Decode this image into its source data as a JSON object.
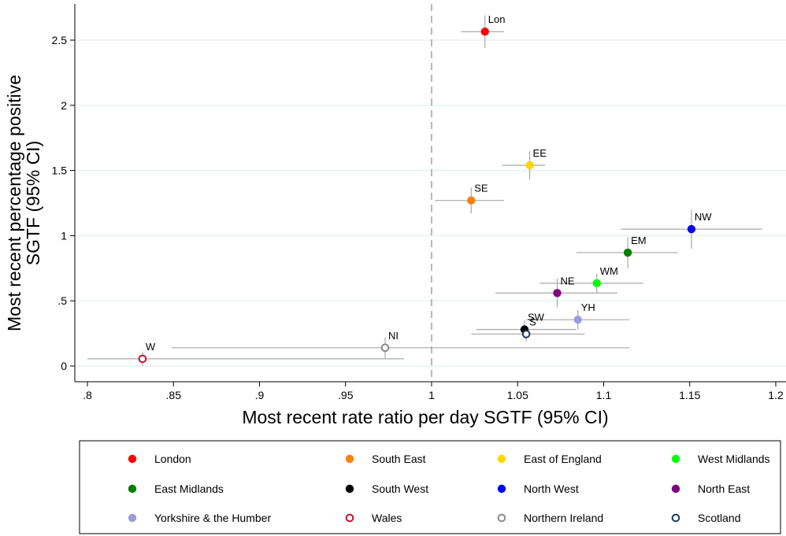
{
  "chart_data": {
    "type": "scatter",
    "xlabel": "Most recent rate ratio per day SGTF (95% CI)",
    "ylabel": "Most recent percentage positive SGTF (95% CI)",
    "xlim": [
      0.8,
      1.2
    ],
    "ylim": [
      0,
      2.5
    ],
    "x_ticks": [
      ".8",
      ".85",
      ".9",
      ".95",
      "1",
      "1.05",
      "1.1",
      "1.15",
      "1.2"
    ],
    "y_ticks": [
      "0",
      ".5",
      "1",
      "1.5",
      "2",
      "2.5"
    ],
    "reference_line_x": 1,
    "grid": "horizontal",
    "legend_position": "bottom",
    "series": [
      {
        "name": "London",
        "label": "Lon",
        "color": "#ff0000",
        "hollow": false,
        "x": 1.031,
        "y": 2.565,
        "x_ci": [
          1.017,
          1.042
        ],
        "y_ci": [
          2.44,
          2.69
        ]
      },
      {
        "name": "South East",
        "label": "SE",
        "color": "#ff7f0e",
        "hollow": false,
        "x": 1.023,
        "y": 1.27,
        "x_ci": [
          1.002,
          1.042
        ],
        "y_ci": [
          1.17,
          1.37
        ]
      },
      {
        "name": "East of England",
        "label": "EE",
        "color": "#ffd700",
        "hollow": false,
        "x": 1.057,
        "y": 1.54,
        "x_ci": [
          1.041,
          1.066
        ],
        "y_ci": [
          1.43,
          1.65
        ]
      },
      {
        "name": "West Midlands",
        "label": "WM",
        "color": "#00ff00",
        "hollow": false,
        "x": 1.096,
        "y": 0.635,
        "x_ci": [
          1.063,
          1.123
        ],
        "y_ci": [
          0.56,
          0.71
        ]
      },
      {
        "name": "East Midlands",
        "label": "EM",
        "color": "#007f00",
        "hollow": false,
        "x": 1.114,
        "y": 0.87,
        "x_ci": [
          1.084,
          1.143
        ],
        "y_ci": [
          0.75,
          0.99
        ]
      },
      {
        "name": "South West",
        "label": "SW",
        "color": "#000000",
        "hollow": false,
        "x": 1.054,
        "y": 0.28,
        "x_ci": [
          1.026,
          1.084
        ],
        "y_ci": [
          0.21,
          0.35
        ]
      },
      {
        "name": "North West",
        "label": "NW",
        "color": "#0000ff",
        "hollow": false,
        "x": 1.151,
        "y": 1.05,
        "x_ci": [
          1.11,
          1.192
        ],
        "y_ci": [
          0.9,
          1.2
        ]
      },
      {
        "name": "North East",
        "label": "NE",
        "color": "#800080",
        "hollow": false,
        "x": 1.073,
        "y": 0.56,
        "x_ci": [
          1.037,
          1.108
        ],
        "y_ci": [
          0.45,
          0.67
        ]
      },
      {
        "name": "Yorkshire & the Humber",
        "label": "YH",
        "color": "#9b9bdc",
        "hollow": false,
        "x": 1.085,
        "y": 0.355,
        "x_ci": [
          1.055,
          1.115
        ],
        "y_ci": [
          0.28,
          0.43
        ]
      },
      {
        "name": "Wales",
        "label": "W",
        "color": "#c8102e",
        "hollow": true,
        "x": 0.832,
        "y": 0.055,
        "x_ci": [
          0.8,
          0.984
        ],
        "y_ci": [
          0.0,
          0.11
        ]
      },
      {
        "name": "Northern Ireland",
        "label": "NI",
        "color": "#8c8c8c",
        "hollow": true,
        "x": 0.973,
        "y": 0.14,
        "x_ci": [
          0.849,
          1.115
        ],
        "y_ci": [
          0.06,
          0.22
        ]
      },
      {
        "name": "Scotland",
        "label": "S",
        "color": "#1f3a5f",
        "hollow": true,
        "x": 1.055,
        "y": 0.245,
        "x_ci": [
          1.023,
          1.089
        ],
        "y_ci": [
          0.19,
          0.3
        ]
      }
    ]
  }
}
